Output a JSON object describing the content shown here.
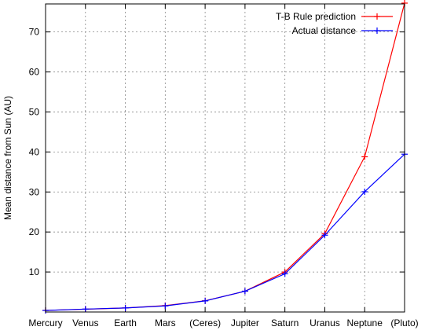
{
  "chart_data": {
    "type": "line",
    "categories": [
      "Mercury",
      "Venus",
      "Earth",
      "Mars",
      "(Ceres)",
      "Jupiter",
      "Saturn",
      "Uranus",
      "Neptune",
      "(Pluto)"
    ],
    "ylabel": "Mean distance from Sun (AU)",
    "xlabel": "",
    "ylim": [
      0,
      77
    ],
    "yticks": [
      10,
      20,
      30,
      40,
      50,
      60,
      70
    ],
    "grid": true,
    "legend": "top-right",
    "series": [
      {
        "name": "T-B Rule prediction",
        "color": "#ff0000",
        "marker": "plus",
        "values": [
          0.4,
          0.7,
          1.0,
          1.6,
          2.8,
          5.2,
          10.0,
          19.6,
          38.8,
          77.2
        ]
      },
      {
        "name": "Actual distance",
        "color": "#0000ff",
        "marker": "plus",
        "values": [
          0.39,
          0.72,
          1.0,
          1.52,
          2.77,
          5.2,
          9.54,
          19.2,
          30.06,
          39.44
        ]
      }
    ]
  }
}
